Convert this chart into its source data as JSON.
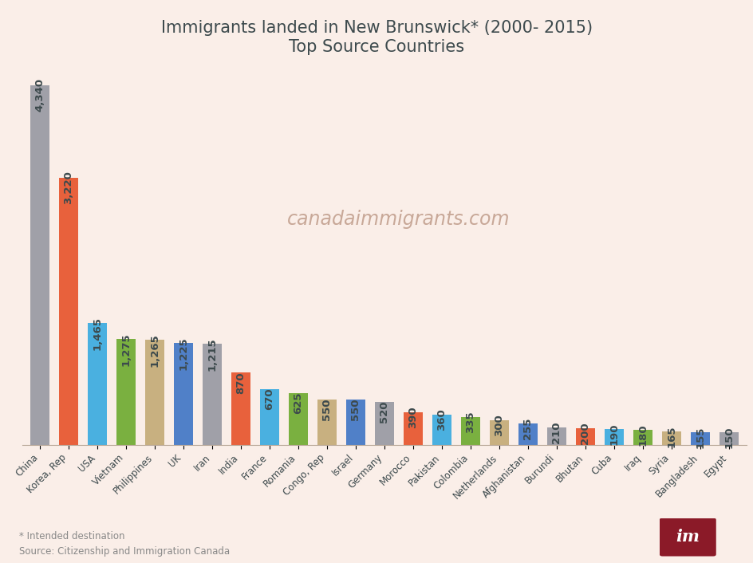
{
  "title_line1": "Immigrants landed in New Brunswick* (2000- 2015)",
  "title_line2": "Top Source Countries",
  "background_color": "#faeee8",
  "watermark": "canadaimmigrants.com",
  "footer_line1": "* Intended destination",
  "footer_line2": "Source: Citizenship and Immigration Canada",
  "categories": [
    "China",
    "Korea, Rep",
    "USA",
    "Vietnam",
    "Philippines",
    "UK",
    "Iran",
    "India",
    "France",
    "Romania",
    "Congo, Rep",
    "Israel",
    "Germany",
    "Morocco",
    "Pakistan",
    "Colombia",
    "Netherlands",
    "Afghanistan",
    "Burundi",
    "Bhutan",
    "Cuba",
    "Iraq",
    "Syria",
    "Bangladesh",
    "Egypt"
  ],
  "values": [
    4340,
    3220,
    1465,
    1275,
    1265,
    1225,
    1215,
    870,
    670,
    625,
    550,
    550,
    520,
    390,
    360,
    335,
    300,
    255,
    210,
    200,
    190,
    180,
    165,
    155,
    150
  ],
  "colors": [
    "#a0a0a8",
    "#e8613c",
    "#4ab0e0",
    "#7ab040",
    "#c8b080",
    "#5080c8",
    "#a0a0a8",
    "#e8613c",
    "#4ab0e0",
    "#7ab040",
    "#c8b080",
    "#5080c8",
    "#a0a0a8",
    "#e8613c",
    "#4ab0e0",
    "#7ab040",
    "#c8b080",
    "#5080c8",
    "#a0a0a8",
    "#e8613c",
    "#4ab0e0",
    "#7ab040",
    "#c8b080",
    "#5080c8",
    "#a0a0a8"
  ],
  "label_color": "#3d4a4d",
  "title_color": "#3d4a4d",
  "watermark_color": "#c8a898",
  "title_fontsize": 15,
  "value_fontsize": 9.5
}
